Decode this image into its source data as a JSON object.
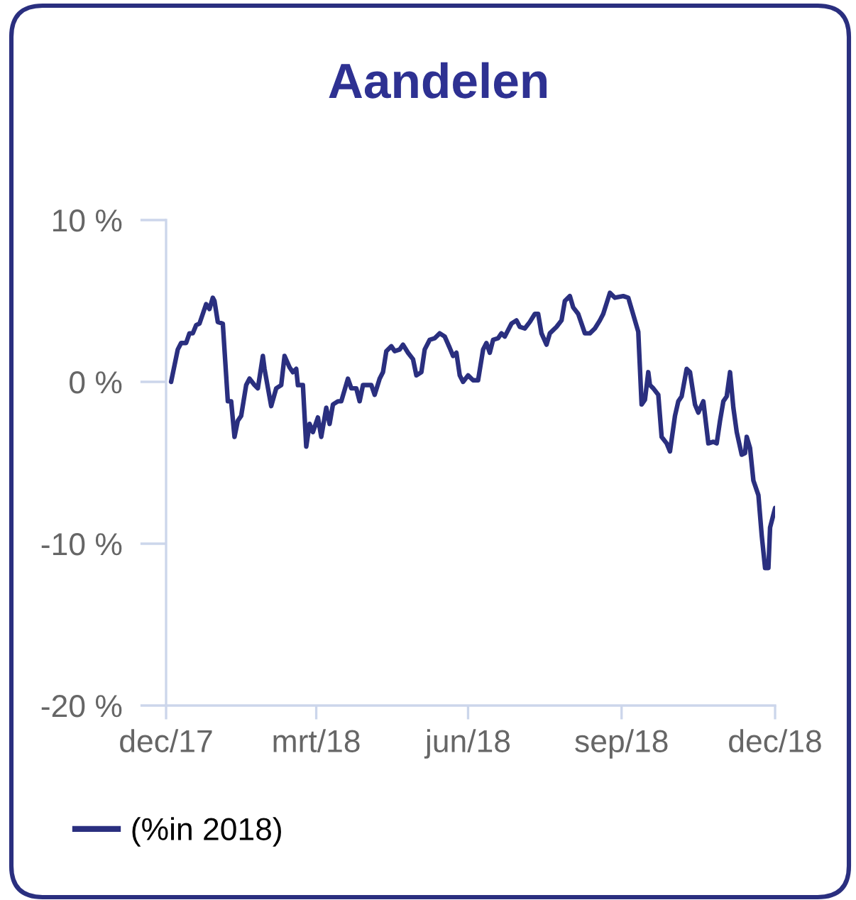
{
  "chart_data": {
    "type": "line",
    "title": "Aandelen",
    "x": [
      "2018-01-03",
      "2018-01-07",
      "2018-01-09",
      "2018-01-12",
      "2018-01-14",
      "2018-01-16",
      "2018-01-18",
      "2018-01-20",
      "2018-01-24",
      "2018-01-26",
      "2018-01-28",
      "2018-01-29",
      "2018-01-31",
      "2018-02-03",
      "2018-02-06",
      "2018-02-08",
      "2018-02-10",
      "2018-02-12",
      "2018-02-14",
      "2018-02-17",
      "2018-02-19",
      "2018-02-22",
      "2018-02-24",
      "2018-02-27",
      "2018-02-28",
      "2018-03-04",
      "2018-03-07",
      "2018-03-10",
      "2018-03-12",
      "2018-03-15",
      "2018-03-17",
      "2018-03-19",
      "2018-03-20",
      "2018-03-23",
      "2018-03-25",
      "2018-03-27",
      "2018-03-29",
      "2018-04-01",
      "2018-04-03",
      "2018-04-06",
      "2018-04-08",
      "2018-04-10",
      "2018-04-13",
      "2018-04-15",
      "2018-04-19",
      "2018-04-21",
      "2018-04-24",
      "2018-04-26",
      "2018-04-28",
      "2018-05-01",
      "2018-05-03",
      "2018-05-05",
      "2018-05-08",
      "2018-05-10",
      "2018-05-12",
      "2018-05-15",
      "2018-05-17",
      "2018-05-20",
      "2018-05-22",
      "2018-05-25",
      "2018-05-28",
      "2018-05-30",
      "2018-06-02",
      "2018-06-04",
      "2018-06-07",
      "2018-06-10",
      "2018-06-13",
      "2018-06-16",
      "2018-06-19",
      "2018-06-21",
      "2018-06-23",
      "2018-06-25",
      "2018-06-27",
      "2018-06-30",
      "2018-07-03",
      "2018-07-06",
      "2018-07-09",
      "2018-07-11",
      "2018-07-13",
      "2018-07-15",
      "2018-07-18",
      "2018-07-20",
      "2018-07-22",
      "2018-07-26",
      "2018-07-29",
      "2018-07-31",
      "2018-08-03",
      "2018-08-06",
      "2018-08-09",
      "2018-08-11",
      "2018-08-13",
      "2018-08-16",
      "2018-08-18",
      "2018-08-22",
      "2018-08-25",
      "2018-08-27",
      "2018-08-30",
      "2018-09-01",
      "2018-09-04",
      "2018-09-08",
      "2018-09-11",
      "2018-09-14",
      "2018-09-17",
      "2018-09-19",
      "2018-09-23",
      "2018-09-26",
      "2018-10-01",
      "2018-10-04",
      "2018-10-06",
      "2018-10-10",
      "2018-10-12",
      "2018-10-14",
      "2018-10-16",
      "2018-10-17",
      "2018-10-19",
      "2018-10-22",
      "2018-10-24",
      "2018-10-27",
      "2018-10-29",
      "2018-11-01",
      "2018-11-03",
      "2018-11-05",
      "2018-11-08",
      "2018-11-10",
      "2018-11-13",
      "2018-11-15",
      "2018-11-18",
      "2018-11-21",
      "2018-11-24",
      "2018-11-26",
      "2018-11-28",
      "2018-11-30",
      "2018-12-02",
      "2018-12-04",
      "2018-12-06",
      "2018-12-08",
      "2018-12-11",
      "2018-12-13",
      "2018-12-14",
      "2018-12-16",
      "2018-12-18",
      "2018-12-21",
      "2018-12-23",
      "2018-12-25",
      "2018-12-27",
      "2018-12-28",
      "2018-12-31"
    ],
    "series": [
      {
        "name": "(%in 2018)",
        "color": "#2a2f7f",
        "values": [
          0.0,
          2.0,
          2.4,
          2.4,
          3.0,
          3.0,
          3.5,
          3.6,
          4.8,
          4.5,
          5.2,
          5.0,
          3.7,
          3.6,
          -1.2,
          -1.2,
          -3.4,
          -2.4,
          -2.1,
          -0.2,
          0.2,
          -0.2,
          -0.4,
          1.6,
          0.8,
          -1.5,
          -0.4,
          -0.2,
          1.6,
          0.9,
          0.6,
          0.8,
          -0.2,
          -0.2,
          -4.0,
          -2.6,
          -3.1,
          -2.2,
          -3.4,
          -1.6,
          -2.6,
          -1.4,
          -1.2,
          -1.2,
          0.2,
          -0.4,
          -0.4,
          -1.2,
          -0.2,
          -0.2,
          -0.2,
          -0.8,
          0.2,
          0.6,
          1.9,
          2.2,
          1.9,
          2.0,
          2.3,
          1.8,
          1.4,
          0.4,
          0.6,
          2.0,
          2.6,
          2.7,
          3.0,
          2.8,
          2.1,
          1.6,
          1.8,
          0.4,
          0.0,
          0.4,
          0.1,
          0.1,
          2.0,
          2.4,
          1.8,
          2.6,
          2.7,
          3.0,
          2.8,
          3.6,
          3.8,
          3.4,
          3.3,
          3.7,
          4.2,
          4.2,
          3.0,
          2.3,
          3.0,
          3.4,
          3.8,
          5.0,
          5.3,
          4.6,
          4.2,
          3.0,
          3.0,
          3.3,
          3.8,
          4.2,
          5.5,
          5.2,
          5.3,
          5.2,
          4.5,
          3.1,
          -1.4,
          -1.1,
          0.6,
          -0.2,
          -0.4,
          -0.8,
          -3.4,
          -3.8,
          -4.3,
          -2.1,
          -1.2,
          -0.9,
          0.8,
          0.6,
          -1.4,
          -1.9,
          -1.2,
          -3.8,
          -3.7,
          -3.8,
          -2.4,
          -1.2,
          -0.9,
          0.6,
          -1.6,
          -3.1,
          -4.5,
          -4.4,
          -3.4,
          -4.1,
          -6.1,
          -7.0,
          -9.5,
          -11.5,
          -11.5,
          -9.0,
          -7.8
        ]
      }
    ],
    "xlim": [
      "2017-12-31",
      "2018-12-31"
    ],
    "xticks": [
      {
        "value": "2017-12-31",
        "label": "dec/17"
      },
      {
        "value": "2018-03-31",
        "label": "mrt/18"
      },
      {
        "value": "2018-06-30",
        "label": "jun/18"
      },
      {
        "value": "2018-09-30",
        "label": "sep/18"
      },
      {
        "value": "2018-12-31",
        "label": "dec/18"
      }
    ],
    "ylim": [
      -20,
      10
    ],
    "yticks": [
      {
        "value": -20,
        "label": "-20 %"
      },
      {
        "value": -10,
        "label": "-10 %"
      },
      {
        "value": 0,
        "label": "0 %"
      },
      {
        "value": 10,
        "label": "10 %"
      }
    ],
    "legend": "bottom left",
    "line_style": "solid"
  }
}
